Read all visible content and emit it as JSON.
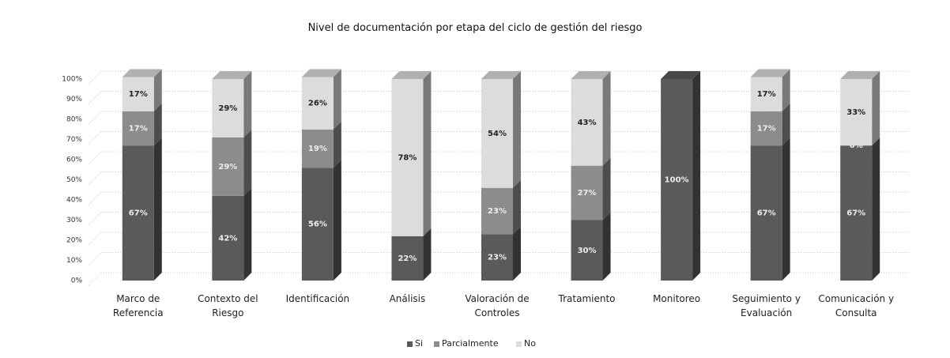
{
  "chart_data": {
    "type": "bar",
    "title": "Nivel de documentación por etapa del  ciclo de gestión del riesgo",
    "categories": [
      "Marco de Referencia",
      "Contexto del Riesgo",
      "Identificación",
      "Análisis",
      "Valoración de Controles",
      "Tratamiento",
      "Monitoreo",
      "Seguimiento y Evaluación",
      "Comunicación y Consulta"
    ],
    "series": [
      {
        "name": "Si",
        "color": "#5a5a5a",
        "values": [
          67,
          42,
          56,
          22,
          23,
          30,
          100,
          67,
          67
        ],
        "value_labels": [
          "67%",
          "42%",
          "56%",
          "22%",
          "23%",
          "30%",
          "100%",
          "67%",
          "67%"
        ]
      },
      {
        "name": "Parcialmente",
        "color": "#8c8c8c",
        "values": [
          17,
          29,
          19,
          0,
          23,
          27,
          0,
          17,
          0
        ],
        "value_labels": [
          "17%",
          "29%",
          "19%",
          null,
          "23%",
          "27%",
          null,
          "17%",
          "0%"
        ]
      },
      {
        "name": "No",
        "color": "#dcdcdc",
        "values": [
          17,
          29,
          26,
          78,
          54,
          43,
          0,
          17,
          33
        ],
        "value_labels": [
          "17%",
          "29%",
          "26%",
          "78%",
          "54%",
          "43%",
          null,
          "17%",
          "33%"
        ]
      }
    ],
    "stacked": true,
    "ylim": [
      0,
      100
    ],
    "yticks": [
      {
        "value": 0,
        "label": "0%"
      },
      {
        "value": 10,
        "label": "10%"
      },
      {
        "value": 20,
        "label": "20%"
      },
      {
        "value": 30,
        "label": "30%"
      },
      {
        "value": 40,
        "label": "40%"
      },
      {
        "value": 50,
        "label": "50%"
      },
      {
        "value": 60,
        "label": "60%"
      },
      {
        "value": 70,
        "label": "70%"
      },
      {
        "value": 80,
        "label": "80%"
      },
      {
        "value": 90,
        "label": "90%"
      },
      {
        "value": 100,
        "label": "100%"
      }
    ],
    "grid": true,
    "legend": "bottom"
  }
}
